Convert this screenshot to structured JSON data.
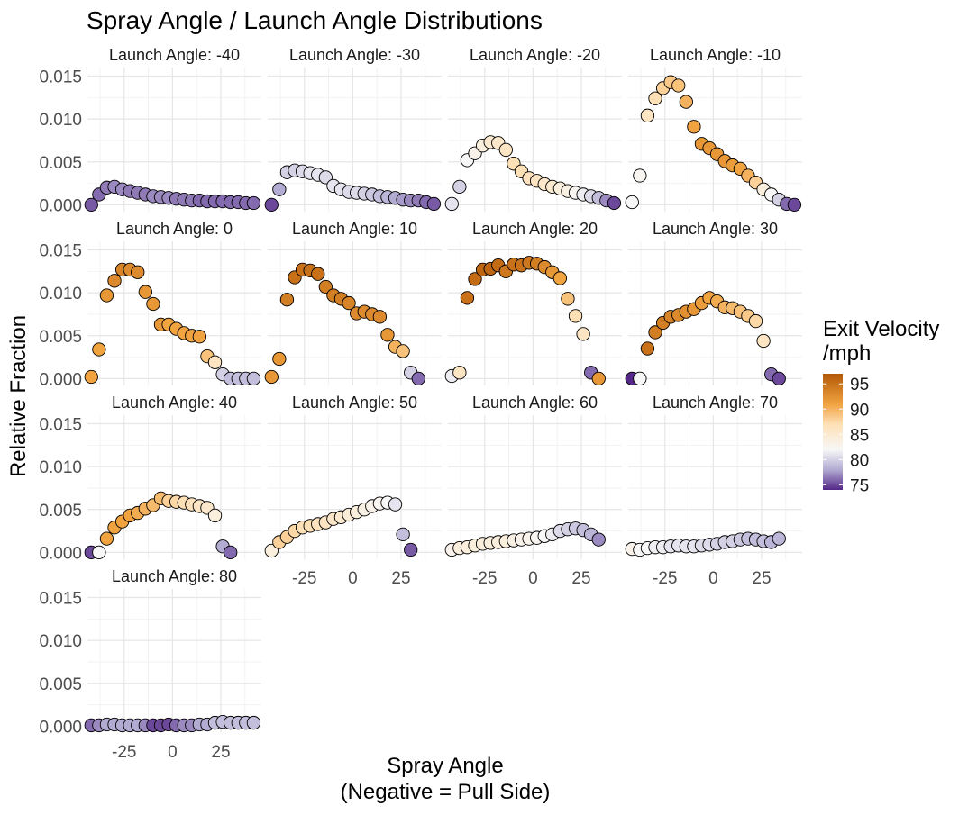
{
  "chart_data": {
    "type": "scatter",
    "title": "Spray Angle / Launch Angle Distributions",
    "xlabel": "Spray Angle\n(Negative = Pull Side)",
    "ylabel": "Relative Fraction",
    "facet_prefix": "Launch Angle: ",
    "x_ticks": [
      -25,
      0,
      25
    ],
    "y_ticks": [
      0.0,
      0.005,
      0.01,
      0.015
    ],
    "y_tick_labels": [
      "0.000",
      "0.005",
      "0.010",
      "0.015"
    ],
    "xlim": [
      -44,
      46
    ],
    "ylim": [
      -0.0008,
      0.016
    ],
    "x_values": [
      -42,
      -38,
      -34,
      -30,
      -26,
      -22,
      -18,
      -14,
      -10,
      -6,
      -2,
      2,
      6,
      10,
      14,
      18,
      22,
      26,
      30,
      34,
      38,
      42
    ],
    "legend": {
      "title": "Exit Velocity\n/mph",
      "position": "right",
      "ticks": [
        95,
        90,
        85,
        80,
        75
      ],
      "range": [
        74,
        97
      ],
      "color_stops": [
        {
          "v": 74,
          "color": "#542788"
        },
        {
          "v": 78,
          "color": "#b2abd2"
        },
        {
          "v": 82,
          "color": "#f7f7f7"
        },
        {
          "v": 87,
          "color": "#fee0b6"
        },
        {
          "v": 91,
          "color": "#f1a340"
        },
        {
          "v": 97,
          "color": "#b35806"
        }
      ]
    },
    "grid": true,
    "panels": [
      {
        "launch_angle": -40,
        "y": [
          0.0,
          0.0012,
          0.002,
          0.0021,
          0.0018,
          0.0016,
          0.0014,
          0.0012,
          0.001,
          0.0009,
          0.0008,
          0.0007,
          0.0006,
          0.0005,
          0.0005,
          0.0004,
          0.0004,
          0.0004,
          0.0003,
          0.0003,
          0.0002,
          0.0002
        ],
        "ev": [
          75.5,
          76,
          76.5,
          77,
          77,
          76.5,
          76.5,
          76.5,
          77,
          77,
          77,
          76.5,
          76.5,
          76.5,
          76,
          76,
          76,
          76,
          76,
          76,
          76,
          76
        ]
      },
      {
        "launch_angle": -30,
        "y": [
          0.0,
          0.0018,
          0.0038,
          0.004,
          0.0039,
          0.0037,
          0.0035,
          0.0032,
          0.0022,
          0.0018,
          0.0015,
          0.0014,
          0.0013,
          0.0012,
          0.001,
          0.0009,
          0.0008,
          0.0006,
          0.0005,
          0.0005,
          0.0003,
          0.0001
        ],
        "ev": [
          75,
          78,
          80,
          80,
          80.5,
          81,
          81,
          80.5,
          81,
          81,
          80.5,
          80.5,
          80,
          79.5,
          79,
          78.5,
          78,
          77.5,
          77,
          76.5,
          76,
          75.5
        ]
      },
      {
        "launch_angle": -20,
        "y": [
          0.0001,
          0.0021,
          0.0052,
          0.006,
          0.0069,
          0.0073,
          0.0072,
          0.0064,
          0.0048,
          0.0039,
          0.0031,
          0.0028,
          0.0024,
          0.0021,
          0.0019,
          0.0016,
          0.0014,
          0.0012,
          0.001,
          0.0008,
          0.0005,
          0.0002
        ],
        "ev": [
          81,
          80,
          82,
          83,
          84,
          85,
          85.5,
          86,
          87,
          87,
          86.5,
          86,
          85.5,
          85,
          84,
          83.5,
          82.5,
          81.5,
          80.5,
          79,
          77,
          75
        ]
      },
      {
        "launch_angle": -10,
        "y": [
          0.0003,
          0.0034,
          0.0104,
          0.0124,
          0.0136,
          0.0143,
          0.0139,
          0.012,
          0.0091,
          0.0071,
          0.0066,
          0.0059,
          0.0051,
          0.0046,
          0.0042,
          0.0034,
          0.0026,
          0.0018,
          0.0012,
          0.0006,
          0.0001,
          0.0
        ],
        "ev": [
          82,
          82.5,
          86,
          87,
          88,
          88.5,
          89,
          90,
          91,
          92,
          92,
          92,
          92,
          91.5,
          91,
          90,
          88,
          84,
          82,
          80,
          76,
          75
        ]
      },
      {
        "launch_angle": 0,
        "y": [
          0.0002,
          0.0034,
          0.0097,
          0.0114,
          0.0127,
          0.0127,
          0.0124,
          0.0101,
          0.0087,
          0.0063,
          0.0063,
          0.0058,
          0.0053,
          0.005,
          0.0049,
          0.0026,
          0.0019,
          0.0005,
          0.0,
          0.0,
          0.0,
          0.0
        ],
        "ev": [
          91,
          91,
          92,
          93,
          93.5,
          93,
          93,
          92,
          92,
          92,
          91,
          91,
          91,
          91,
          91,
          89,
          86,
          80,
          79,
          79,
          79,
          79
        ],
        "n": 18
      },
      {
        "launch_angle": 10,
        "y": [
          0.0002,
          0.0023,
          0.0092,
          0.0118,
          0.0127,
          0.0126,
          0.0122,
          0.0107,
          0.0097,
          0.0093,
          0.0088,
          0.0076,
          0.0078,
          0.0075,
          0.0072,
          0.0051,
          0.0037,
          0.0032,
          0.0007,
          0.0
        ],
        "ev": [
          92,
          92,
          94,
          95,
          95,
          95,
          95,
          94,
          94,
          94,
          93.5,
          93,
          93,
          93,
          93,
          92,
          90,
          89,
          80,
          76
        ]
      },
      {
        "launch_angle": 20,
        "y": [
          0.0003,
          0.0007,
          0.0094,
          0.0116,
          0.0127,
          0.0128,
          0.0132,
          0.0125,
          0.0133,
          0.0132,
          0.0135,
          0.0134,
          0.013,
          0.0124,
          0.0117,
          0.0093,
          0.0073,
          0.0052,
          0.0007,
          0.0
        ],
        "ev": [
          81.5,
          86,
          95,
          95.5,
          96,
          96,
          95.5,
          94.5,
          95,
          95,
          94.5,
          94,
          93,
          92,
          91,
          89,
          87,
          86,
          76,
          92
        ]
      },
      {
        "launch_angle": 30,
        "y": [
          0.0,
          0.0,
          0.0035,
          0.0054,
          0.0065,
          0.0072,
          0.0074,
          0.0078,
          0.0081,
          0.0088,
          0.0094,
          0.009,
          0.0083,
          0.0082,
          0.0078,
          0.0073,
          0.0067,
          0.0044,
          0.0005,
          0.0
        ],
        "ev": [
          72,
          82,
          95,
          94,
          94,
          93.5,
          93,
          92.5,
          92,
          91.5,
          91,
          90.5,
          90,
          89.5,
          89,
          88.5,
          87.5,
          86,
          76,
          75
        ]
      },
      {
        "launch_angle": 40,
        "y": [
          0.0,
          0.0,
          0.0016,
          0.0029,
          0.0036,
          0.0043,
          0.0046,
          0.0051,
          0.0055,
          0.0063,
          0.006,
          0.0059,
          0.0058,
          0.0056,
          0.0054,
          0.0052,
          0.0043,
          0.0007,
          0.0
        ],
        "ev": [
          75,
          82,
          91,
          91,
          91,
          91,
          90.5,
          90,
          89.5,
          89.5,
          88,
          87.5,
          87,
          86.5,
          86,
          85.5,
          84,
          78,
          76
        ]
      },
      {
        "launch_angle": 50,
        "y": [
          0.0002,
          0.0012,
          0.0018,
          0.0025,
          0.0029,
          0.0031,
          0.0033,
          0.0035,
          0.0039,
          0.0041,
          0.0044,
          0.0047,
          0.005,
          0.0054,
          0.0057,
          0.0058,
          0.0056,
          0.0021,
          0.0003
        ],
        "ev": [
          84,
          88,
          88,
          87.5,
          87,
          87,
          86.5,
          86,
          85.5,
          85,
          84.5,
          84,
          83.5,
          83,
          82.5,
          82,
          81,
          79,
          75.5
        ]
      },
      {
        "launch_angle": 60,
        "y": [
          0.0003,
          0.0005,
          0.0006,
          0.0008,
          0.001,
          0.0011,
          0.0012,
          0.0013,
          0.0014,
          0.0015,
          0.0016,
          0.0017,
          0.0019,
          0.0021,
          0.0025,
          0.0027,
          0.0028,
          0.0026,
          0.0021,
          0.0015
        ],
        "ev": [
          83,
          84,
          84,
          84,
          84,
          84,
          84,
          84,
          83.5,
          83,
          83,
          82.5,
          82,
          81.5,
          80.5,
          80,
          79.5,
          79,
          78.5,
          77
        ]
      },
      {
        "launch_angle": 70,
        "y": [
          0.0004,
          0.0003,
          0.0005,
          0.0006,
          0.0006,
          0.0007,
          0.0008,
          0.0007,
          0.0007,
          0.0008,
          0.0009,
          0.001,
          0.0012,
          0.0013,
          0.0015,
          0.0016,
          0.0015,
          0.0013,
          0.0012,
          0.0016
        ],
        "ev": [
          83,
          82,
          82,
          81.5,
          81.5,
          81,
          81,
          81,
          81,
          80.5,
          80.5,
          80,
          80,
          80,
          79.5,
          79,
          79,
          79,
          78.5,
          78.5
        ]
      },
      {
        "launch_angle": 80,
        "y": [
          0.0001,
          0.0001,
          0.0002,
          0.0002,
          0.0001,
          0.0001,
          0.0001,
          0.0001,
          0.0001,
          0.0001,
          0.0002,
          0.0001,
          0.0001,
          0.0001,
          0.0002,
          0.0002,
          0.0004,
          0.0005,
          0.0004,
          0.0004,
          0.0004,
          0.0004
        ],
        "ev": [
          76,
          77,
          78,
          78,
          78,
          78,
          78,
          77,
          75,
          75,
          75,
          76,
          77,
          77,
          78,
          78,
          79,
          79,
          79,
          79,
          79,
          79
        ]
      }
    ]
  }
}
